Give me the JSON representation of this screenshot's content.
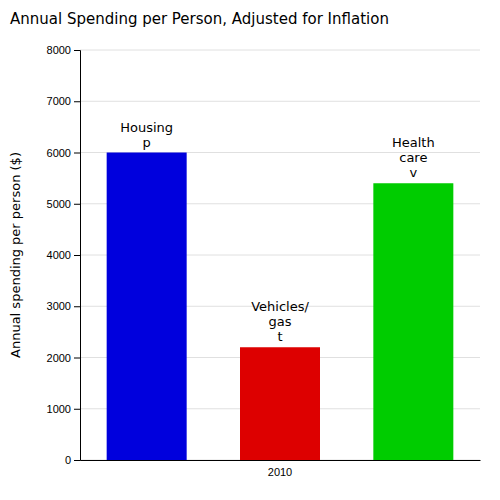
{
  "chart_data": {
    "type": "bar",
    "title": "Annual Spending per Person, Adjusted for Inflation",
    "ylabel": "Annual spending per person ($)",
    "categories": [
      null,
      "2010",
      null
    ],
    "values": [
      6000,
      2200,
      5400
    ],
    "colors": [
      "#0000dd",
      "#dd0000",
      "#00cc00"
    ],
    "annotations": [
      "Housing\np",
      "Vehicles/\ngas\nt",
      "Health\ncare\nv"
    ],
    "ylim": [
      0,
      8000
    ],
    "yticks": [
      0,
      1000,
      2000,
      3000,
      4000,
      5000,
      6000,
      7000,
      8000
    ],
    "grid": true
  }
}
